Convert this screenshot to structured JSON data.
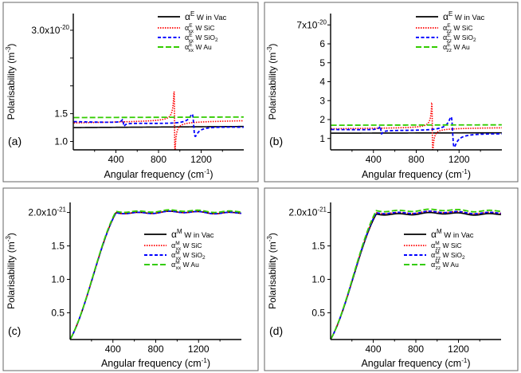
{
  "figure": {
    "panels": [
      {
        "id": "a",
        "label": "(a)",
        "y_scale_label": "3.0x10",
        "y_scale_exp": "-20",
        "chart_data": {
          "type": "line",
          "xlabel": "Angular frequency (cm",
          "xlabel_sup": "-1",
          "xlabel_end": ")",
          "ylabel": "Polarisability (m",
          "ylabel_sup": "-3",
          "ylabel_end": ")",
          "xlim": [
            0,
            1600
          ],
          "ylim": [
            0.85,
            3.3
          ],
          "xticks": [
            400,
            800,
            1200
          ],
          "yticks": [
            1.0,
            1.5,
            2.0,
            2.5,
            3.0
          ],
          "ytick_labels": [
            "1.0",
            "1.5",
            "",
            "",
            ""
          ],
          "legend": [
            {
              "sym": "α",
              "sup": "E",
              "sub": "",
              "text": "W in Vac"
            },
            {
              "sym": "α",
              "sup": "E",
              "sub": "xx",
              "text": "W SiC"
            },
            {
              "sym": "α",
              "sup": "E",
              "sub": "xx",
              "text": "W SiO",
              "text_sub": "2"
            },
            {
              "sym": "α",
              "sup": "E",
              "sub": "xx",
              "text": "W Au"
            }
          ],
          "series": [
            {
              "name": "W in Vac",
              "color": "#000000",
              "style": "solid",
              "shape": "flat",
              "base": 1.25,
              "end": 1.27
            },
            {
              "name": "W SiC",
              "color": "#ff0000",
              "style": "dot",
              "shape": "sic",
              "base": 1.33,
              "end": 1.38,
              "res": 950,
              "amp": 0.55
            },
            {
              "name": "W SiO2",
              "color": "#0000ff",
              "style": "dash",
              "shape": "sio2",
              "base": 1.35,
              "end": 1.27,
              "f1": 470,
              "a1": 0.12,
              "f2": 1130,
              "a2": 0.2
            },
            {
              "name": "W Au",
              "color": "#33cc00",
              "style": "longdash",
              "shape": "flat",
              "base": 1.43,
              "end": 1.44
            }
          ]
        }
      },
      {
        "id": "b",
        "label": "(b)",
        "y_scale_label": "7x10",
        "y_scale_exp": "-20",
        "chart_data": {
          "type": "line",
          "xlabel": "Angular frequency (cm",
          "xlabel_sup": "-1",
          "xlabel_end": ")",
          "ylabel": "Polarisability (m",
          "ylabel_sup": "-3",
          "ylabel_end": ")",
          "xlim": [
            0,
            1600
          ],
          "ylim": [
            0.4,
            7.6
          ],
          "xticks": [
            400,
            800,
            1200
          ],
          "yticks": [
            1,
            2,
            3,
            4,
            5,
            6,
            7
          ],
          "ytick_labels": [
            "1",
            "2",
            "3",
            "4",
            "5",
            "6",
            ""
          ],
          "legend": [
            {
              "sym": "α",
              "sup": "E",
              "sub": "",
              "text": "W in Vac"
            },
            {
              "sym": "α",
              "sup": "E",
              "sub": "zz",
              "text": "W SiC"
            },
            {
              "sym": "α",
              "sup": "E",
              "sub": "zz",
              "text": "W SiO",
              "text_sub": "2"
            },
            {
              "sym": "α",
              "sup": "E",
              "sub": "zz",
              "text": "W Au"
            }
          ],
          "series": [
            {
              "name": "W in Vac",
              "color": "#000000",
              "style": "solid",
              "shape": "flat",
              "base": 1.28,
              "end": 1.3
            },
            {
              "name": "W SiC",
              "color": "#ff0000",
              "style": "dot",
              "shape": "sic",
              "base": 1.5,
              "end": 1.58,
              "res": 950,
              "amp": 1.3
            },
            {
              "name": "W SiO2",
              "color": "#0000ff",
              "style": "dash",
              "shape": "sio2",
              "base": 1.45,
              "end": 1.3,
              "f1": 470,
              "a1": 0.4,
              "f2": 1140,
              "a2": 0.8
            },
            {
              "name": "W Au",
              "color": "#33cc00",
              "style": "longdash",
              "shape": "flat",
              "base": 1.7,
              "end": 1.72
            }
          ]
        }
      },
      {
        "id": "c",
        "label": "(c)",
        "y_scale_label": "2.0x10",
        "y_scale_exp": "-21",
        "chart_data": {
          "type": "line",
          "xlabel": "Angular frequency (cm",
          "xlabel_sup": "-1",
          "xlabel_end": ")",
          "ylabel": "Polarisability (m",
          "ylabel_sup": "-3",
          "ylabel_end": ")",
          "xlim": [
            0,
            1600
          ],
          "ylim": [
            0.1,
            2.15
          ],
          "xticks": [
            400,
            800,
            1200
          ],
          "yticks": [
            0.5,
            1.0,
            1.5,
            2.0
          ],
          "ytick_labels": [
            "0.5",
            "1.0",
            "1.5",
            ""
          ],
          "legend": [
            {
              "sym": "α",
              "sup": "M",
              "sub": "",
              "text": "W  in Vac"
            },
            {
              "sym": "α",
              "sup": "M",
              "sub": "xx",
              "text": "W SiC"
            },
            {
              "sym": "α",
              "sup": "M",
              "sub": "xx",
              "text": "W SiO",
              "text_sub": "2"
            },
            {
              "sym": "α",
              "sup": "M",
              "sub": "xx",
              "text": "W Au"
            }
          ],
          "series": [
            {
              "name": "W in Vac",
              "color": "#000000",
              "style": "solid",
              "shape": "sat",
              "plateau": 2.0,
              "y0": 0.1,
              "knee": 430
            },
            {
              "name": "W SiC",
              "color": "#ff0000",
              "style": "dot",
              "shape": "sat",
              "plateau": 2.0,
              "y0": 0.1,
              "knee": 430
            },
            {
              "name": "W SiO2",
              "color": "#0000ff",
              "style": "dash",
              "shape": "sat",
              "plateau": 2.0,
              "y0": 0.1,
              "knee": 430
            },
            {
              "name": "W Au",
              "color": "#33cc00",
              "style": "longdash",
              "shape": "sat",
              "plateau": 2.02,
              "y0": 0.1,
              "knee": 430
            }
          ]
        }
      },
      {
        "id": "d",
        "label": "(d)",
        "y_scale_label": "2.0x10",
        "y_scale_exp": "-21",
        "chart_data": {
          "type": "line",
          "xlabel": "Angular frequency (cm",
          "xlabel_sup": "-1",
          "xlabel_end": ")",
          "ylabel": "Polarisability (m",
          "ylabel_sup": "-3",
          "ylabel_end": ")",
          "xlim": [
            0,
            1600
          ],
          "ylim": [
            0.1,
            2.15
          ],
          "xticks": [
            400,
            800,
            1200
          ],
          "yticks": [
            0.5,
            1.0,
            1.5,
            2.0
          ],
          "ytick_labels": [
            "0.5",
            "1.0",
            "1.5",
            ""
          ],
          "legend": [
            {
              "sym": "α",
              "sup": "M",
              "sub": "",
              "text": "W  in Vac"
            },
            {
              "sym": "α",
              "sup": "M",
              "sub": "zz",
              "text": "W SiC"
            },
            {
              "sym": "α",
              "sup": "M",
              "sub": "zz",
              "text": "W SiO",
              "text_sub": "2"
            },
            {
              "sym": "α",
              "sup": "M",
              "sub": "zz",
              "text": "W Au"
            }
          ],
          "series": [
            {
              "name": "W in Vac",
              "color": "#000000",
              "style": "solid",
              "shape": "sat",
              "plateau": 1.98,
              "y0": 0.1,
              "knee": 430
            },
            {
              "name": "W SiC",
              "color": "#ff0000",
              "style": "dot",
              "shape": "sat",
              "plateau": 2.0,
              "y0": 0.1,
              "knee": 430
            },
            {
              "name": "W SiO2",
              "color": "#0000ff",
              "style": "dash",
              "shape": "sat",
              "plateau": 2.0,
              "y0": 0.1,
              "knee": 430
            },
            {
              "name": "W Au",
              "color": "#33cc00",
              "style": "longdash",
              "shape": "sat",
              "plateau": 2.03,
              "y0": 0.1,
              "knee": 430
            }
          ]
        }
      }
    ]
  }
}
